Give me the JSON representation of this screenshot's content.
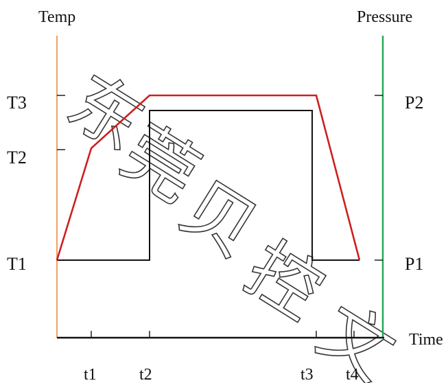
{
  "labels": {
    "left_axis": "Temp",
    "right_axis": "Pressure",
    "x_axis": "Time"
  },
  "temperature_levels": [
    "T1",
    "T2",
    "T3"
  ],
  "pressure_levels": [
    "P1",
    "P2"
  ],
  "time_points": [
    "t1",
    "t2",
    "t3",
    "t4"
  ],
  "profiles": {
    "temperature": {
      "description_points": [
        "start@T1",
        "t1@T2",
        "t2@T3",
        "t3@T3",
        "t4@T1"
      ]
    },
    "pressure": {
      "description_points": [
        "start@P1",
        "t2@P1",
        "t2@P2",
        "t3@P2",
        "t3@P1",
        "t4@P1"
      ]
    }
  },
  "colors": {
    "temp_axis": "#f0a060",
    "pressure_axis": "#22aa55",
    "temp_curve": "#cc1f1f",
    "pressure_curve": "#111111",
    "baseline": "#111111"
  },
  "watermark": {
    "chars": [
      "东",
      "莞",
      "贝",
      "控",
      "文"
    ]
  }
}
